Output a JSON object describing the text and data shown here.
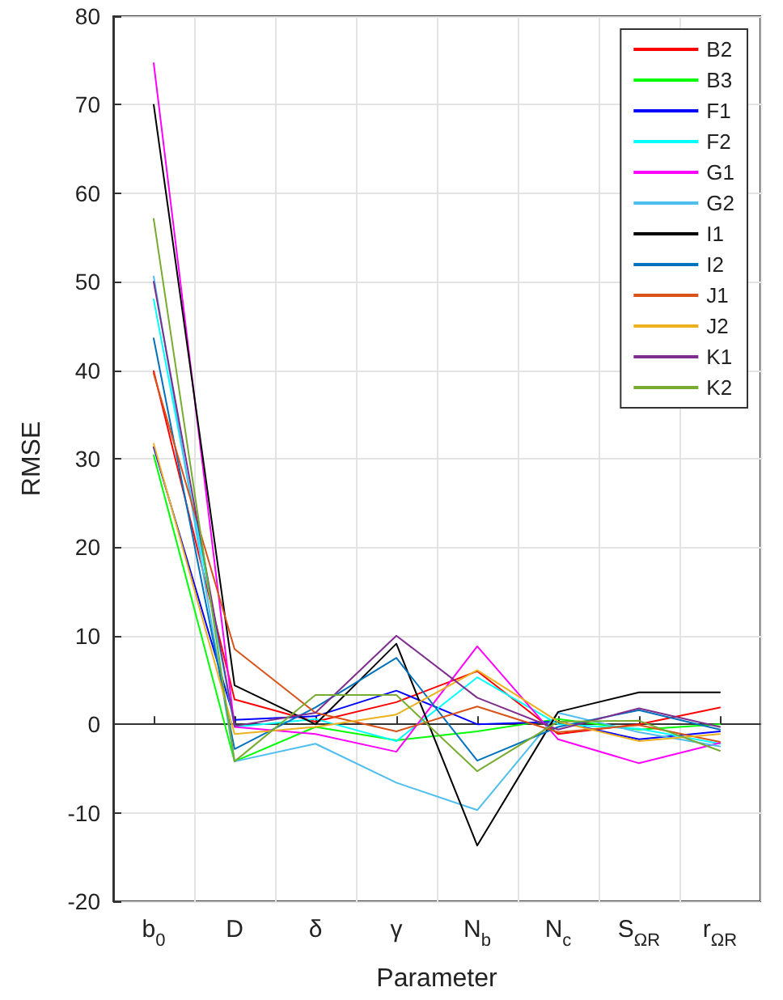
{
  "chart_data": {
    "type": "line",
    "xlabel": "Parameter",
    "ylabel": "RMSE",
    "categories": [
      "b$_{0}$",
      "D",
      "δ",
      "γ",
      "N$_{b}$",
      "N$_{c}$",
      "S$_{ΩR}$",
      "r$_{ΩR}$"
    ],
    "ylim": [
      -20,
      80
    ],
    "yticks": [
      -20,
      -10,
      0,
      10,
      20,
      30,
      40,
      50,
      60,
      70,
      80
    ],
    "grid": true,
    "legend": "top right",
    "marker": "none",
    "line_style": "solid",
    "series": [
      {
        "name": "B2",
        "color": "#ff0000",
        "values": [
          39.9,
          2.8,
          0.3,
          2.5,
          6.0,
          -1.1,
          0.0,
          1.9
        ]
      },
      {
        "name": "B3",
        "color": "#00ff00",
        "values": [
          30.4,
          -4.2,
          -0.3,
          -1.8,
          -0.8,
          0.6,
          -0.6,
          0.0
        ]
      },
      {
        "name": "F1",
        "color": "#0000ff",
        "values": [
          31.3,
          0.5,
          0.9,
          3.8,
          0.0,
          0.3,
          -1.7,
          -0.8
        ]
      },
      {
        "name": "F2",
        "color": "#00ffff",
        "values": [
          48.0,
          -0.3,
          0.6,
          -1.9,
          5.3,
          0.0,
          -0.5,
          -2.2
        ]
      },
      {
        "name": "G1",
        "color": "#ff00ff",
        "values": [
          74.7,
          -0.3,
          -1.1,
          -3.1,
          8.8,
          -1.7,
          -4.4,
          -2.1
        ]
      },
      {
        "name": "G2",
        "color": "#4dbeee",
        "values": [
          50.6,
          -4.2,
          -2.2,
          -6.6,
          -9.7,
          1.3,
          -0.9,
          -2.5
        ]
      },
      {
        "name": "I1",
        "color": "#000000",
        "values": [
          70.0,
          4.4,
          0.0,
          9.1,
          -13.7,
          1.4,
          3.6,
          3.6
        ]
      },
      {
        "name": "I2",
        "color": "#0072bd",
        "values": [
          43.6,
          -2.8,
          1.9,
          7.5,
          -4.1,
          -0.3,
          1.6,
          -0.6
        ]
      },
      {
        "name": "J1",
        "color": "#d95319",
        "values": [
          39.6,
          8.5,
          1.3,
          -0.8,
          2.0,
          -0.9,
          -0.1,
          -2.0
        ]
      },
      {
        "name": "J2",
        "color": "#edb120",
        "values": [
          31.7,
          -1.1,
          -0.3,
          1.1,
          6.1,
          0.3,
          -1.9,
          -1.1
        ]
      },
      {
        "name": "K1",
        "color": "#7e2f8e",
        "values": [
          50.0,
          -0.2,
          1.3,
          10.0,
          3.0,
          -0.6,
          1.8,
          -0.3
        ]
      },
      {
        "name": "K2",
        "color": "#77ac30",
        "values": [
          57.1,
          -4.2,
          3.3,
          3.3,
          -5.3,
          0.3,
          0.4,
          -3.0
        ]
      }
    ]
  }
}
